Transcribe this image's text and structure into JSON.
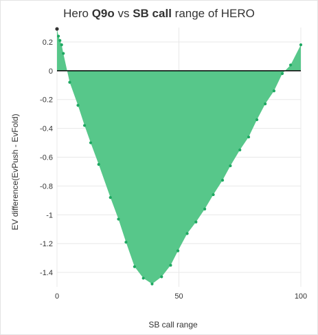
{
  "title": {
    "prefix": "Hero",
    "hand": "Q9o",
    "middle": "vs",
    "position": "SB call",
    "suffix": "range of HERO"
  },
  "colors": {
    "area_fill": "#57c78a",
    "marker": "#1fa862",
    "zero_line": "#000000",
    "grid": "#e8e8e8"
  },
  "chart_data": {
    "type": "area",
    "title": "Hero Q9o vs SB call range of HERO",
    "xlabel": "SB call range",
    "ylabel": "EV difference(EvPush - EvFold)",
    "xlim": [
      0,
      100
    ],
    "ylim": [
      -1.5,
      0.3
    ],
    "xticks": [
      0,
      50,
      100
    ],
    "yticks": [
      -1.4,
      -1.2,
      -1,
      -0.8,
      -0.6,
      -0.4,
      -0.2,
      0,
      0.2
    ],
    "ytick_labels": [
      "-1.4",
      "-1.2",
      "-1",
      "-0.8",
      "-0.6",
      "-0.4",
      "-0.2",
      "0",
      "0.2"
    ],
    "grid": true,
    "series": [
      {
        "x": [
          0,
          0.6,
          1.2,
          1.9,
          2.6,
          5.2,
          8.6,
          11.3,
          13.8,
          17.1,
          21.9,
          25.2,
          28.3,
          31.8,
          35.4,
          39.0,
          42.9,
          46.6,
          49.6,
          53.4,
          57.0,
          60.6,
          64.1,
          67.9,
          71.1,
          75.0,
          78.6,
          82.0,
          85.4,
          89.0,
          92.4,
          95.8,
          100
        ],
        "y": [
          0.29,
          0.24,
          0.21,
          0.18,
          0.12,
          -0.08,
          -0.24,
          -0.38,
          -0.5,
          -0.65,
          -0.88,
          -1.03,
          -1.19,
          -1.36,
          -1.44,
          -1.48,
          -1.43,
          -1.35,
          -1.25,
          -1.13,
          -1.05,
          -0.96,
          -0.86,
          -0.76,
          -0.66,
          -0.55,
          -0.46,
          -0.34,
          -0.23,
          -0.14,
          -0.02,
          0.04,
          0.18
        ]
      }
    ]
  }
}
